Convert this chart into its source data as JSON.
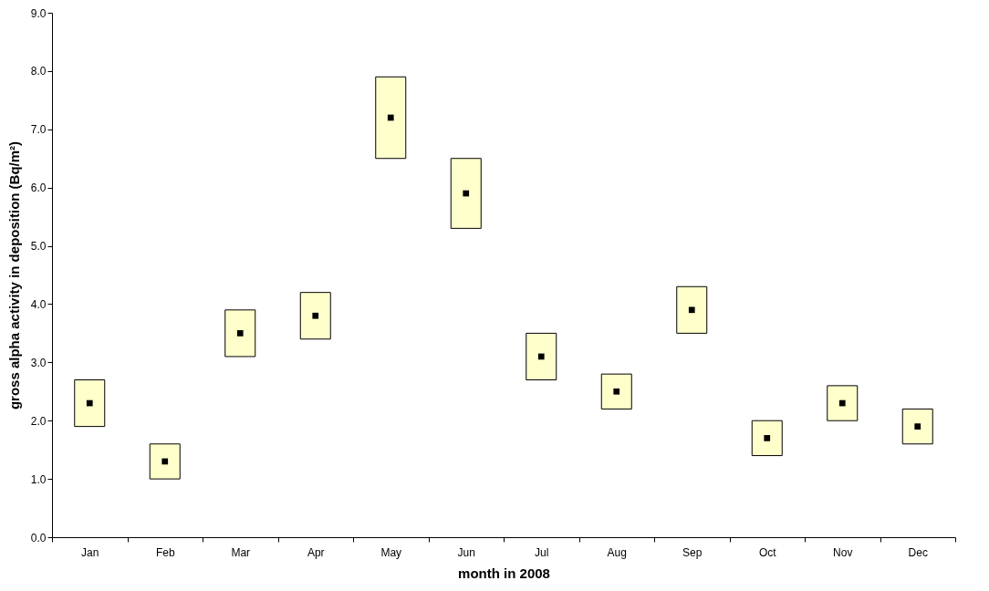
{
  "chart_data": {
    "type": "bar",
    "xlabel": "month in 2008",
    "ylabel": "gross alpha activity in deposition (Bq/m²)",
    "categories": [
      "Jan",
      "Feb",
      "Mar",
      "Apr",
      "May",
      "Jun",
      "Jul",
      "Aug",
      "Sep",
      "Oct",
      "Nov",
      "Dec"
    ],
    "series": [
      {
        "color": "#ffffcc",
        "base": [
          1.9,
          1.0,
          3.1,
          3.4,
          6.5,
          5.3,
          2.7,
          2.2,
          3.5,
          1.4,
          2.0,
          1.6
        ],
        "values": [
          0.8,
          0.6,
          0.8,
          0.8,
          1.4,
          1.2,
          0.8,
          0.6,
          0.8,
          0.6,
          0.6,
          0.6
        ]
      },
      {
        "type": "scatter",
        "color": "#000000",
        "marker": "square",
        "values": [
          2.3,
          1.3,
          3.5,
          3.8,
          7.2,
          5.9,
          3.1,
          2.5,
          3.9,
          1.7,
          2.3,
          1.9
        ]
      }
    ],
    "ylim": [
      0,
      9
    ],
    "yticks": [
      {
        "value": 0,
        "label": "0.0"
      },
      {
        "value": 1,
        "label": "1.0"
      },
      {
        "value": 2,
        "label": "2.0"
      },
      {
        "value": 3,
        "label": "3.0"
      },
      {
        "value": 4,
        "label": "4.0"
      },
      {
        "value": 5,
        "label": "5.0"
      },
      {
        "value": 6,
        "label": "6.0"
      },
      {
        "value": 7,
        "label": "7.0"
      },
      {
        "value": 8,
        "label": "8.0"
      },
      {
        "value": 9,
        "label": "9.0"
      }
    ],
    "grid": false
  }
}
